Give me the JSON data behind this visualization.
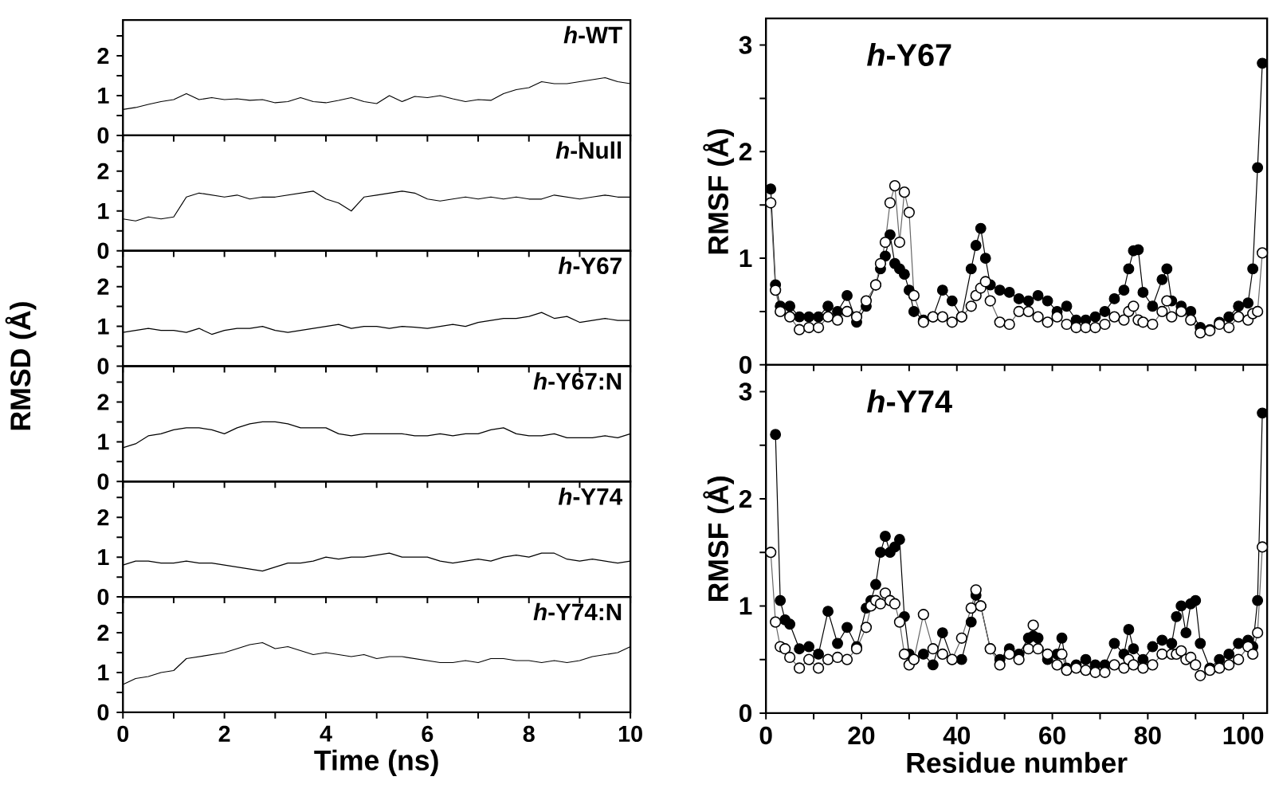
{
  "chart_data": [
    {
      "type": "line",
      "title": "*h*-WT",
      "color": "#000000",
      "tick_labels": "y",
      "xlim": [
        0,
        10
      ],
      "ylim": [
        0,
        2.9
      ],
      "xticks": [
        0,
        {
          "value": 1,
          "label": null
        },
        2,
        {
          "value": 3,
          "label": null
        },
        4,
        {
          "value": 5,
          "label": null
        },
        6,
        {
          "value": 7,
          "label": null
        },
        8,
        {
          "value": 9,
          "label": null
        },
        10
      ],
      "yticks": [
        0,
        {
          "value": 0.5,
          "label": null
        },
        1,
        {
          "value": 1.5,
          "label": null
        },
        2,
        {
          "value": 2.5,
          "label": null
        }
      ],
      "x": [
        0,
        0.25,
        0.5,
        0.75,
        1,
        1.25,
        1.5,
        1.75,
        2,
        2.25,
        2.5,
        2.75,
        3,
        3.25,
        3.5,
        3.75,
        4,
        4.25,
        4.5,
        4.75,
        5,
        5.25,
        5.5,
        5.75,
        6,
        6.25,
        6.5,
        6.75,
        7,
        7.25,
        7.5,
        7.75,
        8,
        8.25,
        8.5,
        8.75,
        9,
        9.25,
        9.5,
        9.75,
        10
      ],
      "values": [
        0.65,
        0.7,
        0.78,
        0.85,
        0.9,
        1.05,
        0.9,
        0.95,
        0.9,
        0.92,
        0.88,
        0.9,
        0.82,
        0.85,
        0.95,
        0.85,
        0.82,
        0.88,
        0.95,
        0.85,
        0.8,
        1.0,
        0.85,
        0.98,
        0.95,
        1.0,
        0.92,
        0.85,
        0.9,
        0.88,
        1.05,
        1.15,
        1.2,
        1.35,
        1.3,
        1.3,
        1.35,
        1.4,
        1.45,
        1.35,
        1.3
      ]
    },
    {
      "type": "line",
      "title": "*h*-Null",
      "color": "#000000",
      "tick_labels": "y",
      "xlim": [
        0,
        10
      ],
      "ylim": [
        0,
        2.9
      ],
      "xticks": [
        0,
        {
          "value": 1,
          "label": null
        },
        2,
        {
          "value": 3,
          "label": null
        },
        4,
        {
          "value": 5,
          "label": null
        },
        6,
        {
          "value": 7,
          "label": null
        },
        8,
        {
          "value": 9,
          "label": null
        },
        10
      ],
      "yticks": [
        0,
        {
          "value": 0.5,
          "label": null
        },
        1,
        {
          "value": 1.5,
          "label": null
        },
        2,
        {
          "value": 2.5,
          "label": null
        }
      ],
      "x": [
        0,
        0.25,
        0.5,
        0.75,
        1,
        1.25,
        1.5,
        1.75,
        2,
        2.25,
        2.5,
        2.75,
        3,
        3.25,
        3.5,
        3.75,
        4,
        4.25,
        4.5,
        4.75,
        5,
        5.25,
        5.5,
        5.75,
        6,
        6.25,
        6.5,
        6.75,
        7,
        7.25,
        7.5,
        7.75,
        8,
        8.25,
        8.5,
        8.75,
        9,
        9.25,
        9.5,
        9.75,
        10
      ],
      "values": [
        0.8,
        0.75,
        0.85,
        0.8,
        0.85,
        1.35,
        1.45,
        1.4,
        1.35,
        1.4,
        1.3,
        1.35,
        1.35,
        1.4,
        1.45,
        1.5,
        1.3,
        1.2,
        1.0,
        1.35,
        1.4,
        1.45,
        1.5,
        1.45,
        1.3,
        1.25,
        1.3,
        1.35,
        1.3,
        1.35,
        1.3,
        1.35,
        1.3,
        1.3,
        1.4,
        1.35,
        1.3,
        1.35,
        1.4,
        1.35,
        1.35
      ]
    },
    {
      "type": "line",
      "title": "*h*-Y67",
      "color": "#000000",
      "tick_labels": "y",
      "xlim": [
        0,
        10
      ],
      "ylim": [
        0,
        2.9
      ],
      "xticks": [
        0,
        {
          "value": 1,
          "label": null
        },
        2,
        {
          "value": 3,
          "label": null
        },
        4,
        {
          "value": 5,
          "label": null
        },
        6,
        {
          "value": 7,
          "label": null
        },
        8,
        {
          "value": 9,
          "label": null
        },
        10
      ],
      "yticks": [
        0,
        {
          "value": 0.5,
          "label": null
        },
        1,
        {
          "value": 1.5,
          "label": null
        },
        2,
        {
          "value": 2.5,
          "label": null
        }
      ],
      "x": [
        0,
        0.25,
        0.5,
        0.75,
        1,
        1.25,
        1.5,
        1.75,
        2,
        2.25,
        2.5,
        2.75,
        3,
        3.25,
        3.5,
        3.75,
        4,
        4.25,
        4.5,
        4.75,
        5,
        5.25,
        5.5,
        5.75,
        6,
        6.25,
        6.5,
        6.75,
        7,
        7.25,
        7.5,
        7.75,
        8,
        8.25,
        8.5,
        8.75,
        9,
        9.25,
        9.5,
        9.75,
        10
      ],
      "values": [
        0.85,
        0.9,
        0.95,
        0.9,
        0.9,
        0.85,
        0.95,
        0.8,
        0.9,
        0.95,
        0.95,
        1.0,
        0.9,
        0.85,
        0.9,
        0.95,
        1.0,
        1.05,
        0.95,
        1.0,
        1.0,
        0.95,
        1.0,
        0.98,
        0.95,
        1.0,
        1.05,
        1.0,
        1.1,
        1.15,
        1.2,
        1.2,
        1.25,
        1.35,
        1.2,
        1.25,
        1.1,
        1.15,
        1.2,
        1.15,
        1.15
      ]
    },
    {
      "type": "line",
      "title": "*h*-Y67:N",
      "ylabel": "RMSD (Å)",
      "color": "#000000",
      "tick_labels": "y",
      "xlim": [
        0,
        10
      ],
      "ylim": [
        0,
        2.9
      ],
      "xticks": [
        0,
        {
          "value": 1,
          "label": null
        },
        2,
        {
          "value": 3,
          "label": null
        },
        4,
        {
          "value": 5,
          "label": null
        },
        6,
        {
          "value": 7,
          "label": null
        },
        8,
        {
          "value": 9,
          "label": null
        },
        10
      ],
      "yticks": [
        0,
        {
          "value": 0.5,
          "label": null
        },
        1,
        {
          "value": 1.5,
          "label": null
        },
        2,
        {
          "value": 2.5,
          "label": null
        }
      ],
      "x": [
        0,
        0.25,
        0.5,
        0.75,
        1,
        1.25,
        1.5,
        1.75,
        2,
        2.25,
        2.5,
        2.75,
        3,
        3.25,
        3.5,
        3.75,
        4,
        4.25,
        4.5,
        4.75,
        5,
        5.25,
        5.5,
        5.75,
        6,
        6.25,
        6.5,
        6.75,
        7,
        7.25,
        7.5,
        7.75,
        8,
        8.25,
        8.5,
        8.75,
        9,
        9.25,
        9.5,
        9.75,
        10
      ],
      "values": [
        0.85,
        0.95,
        1.15,
        1.2,
        1.3,
        1.35,
        1.35,
        1.3,
        1.2,
        1.35,
        1.45,
        1.5,
        1.5,
        1.45,
        1.35,
        1.35,
        1.35,
        1.2,
        1.15,
        1.2,
        1.2,
        1.2,
        1.2,
        1.15,
        1.15,
        1.2,
        1.15,
        1.2,
        1.2,
        1.3,
        1.35,
        1.2,
        1.15,
        1.15,
        1.2,
        1.1,
        1.1,
        1.1,
        1.15,
        1.1,
        1.2
      ]
    },
    {
      "type": "line",
      "title": "*h*-Y74",
      "color": "#000000",
      "tick_labels": "y",
      "xlim": [
        0,
        10
      ],
      "ylim": [
        0,
        2.9
      ],
      "xticks": [
        0,
        {
          "value": 1,
          "label": null
        },
        2,
        {
          "value": 3,
          "label": null
        },
        4,
        {
          "value": 5,
          "label": null
        },
        6,
        {
          "value": 7,
          "label": null
        },
        8,
        {
          "value": 9,
          "label": null
        },
        10
      ],
      "yticks": [
        0,
        {
          "value": 0.5,
          "label": null
        },
        1,
        {
          "value": 1.5,
          "label": null
        },
        2,
        {
          "value": 2.5,
          "label": null
        }
      ],
      "x": [
        0,
        0.25,
        0.5,
        0.75,
        1,
        1.25,
        1.5,
        1.75,
        2,
        2.25,
        2.5,
        2.75,
        3,
        3.25,
        3.5,
        3.75,
        4,
        4.25,
        4.5,
        4.75,
        5,
        5.25,
        5.5,
        5.75,
        6,
        6.25,
        6.5,
        6.75,
        7,
        7.25,
        7.5,
        7.75,
        8,
        8.25,
        8.5,
        8.75,
        9,
        9.25,
        9.5,
        9.75,
        10
      ],
      "values": [
        0.8,
        0.9,
        0.9,
        0.85,
        0.85,
        0.9,
        0.85,
        0.85,
        0.8,
        0.75,
        0.7,
        0.65,
        0.75,
        0.85,
        0.85,
        0.9,
        1.0,
        0.95,
        1.0,
        1.0,
        1.05,
        1.1,
        1.0,
        1.0,
        1.0,
        0.9,
        0.85,
        0.9,
        0.95,
        0.9,
        1.0,
        1.05,
        1.0,
        1.1,
        1.1,
        0.95,
        0.9,
        0.95,
        0.9,
        0.85,
        0.9
      ]
    },
    {
      "type": "line",
      "title": "*h*-Y74:N",
      "xlabel": "Time (ns)",
      "color": "#000000",
      "xlim": [
        0,
        10
      ],
      "ylim": [
        0,
        2.9
      ],
      "xticks": [
        0,
        {
          "value": 1,
          "label": null
        },
        2,
        {
          "value": 3,
          "label": null
        },
        4,
        {
          "value": 5,
          "label": null
        },
        6,
        {
          "value": 7,
          "label": null
        },
        8,
        {
          "value": 9,
          "label": null
        },
        10
      ],
      "yticks": [
        0,
        {
          "value": 0.5,
          "label": null
        },
        1,
        {
          "value": 1.5,
          "label": null
        },
        2,
        {
          "value": 2.5,
          "label": null
        }
      ],
      "x": [
        0,
        0.25,
        0.5,
        0.75,
        1,
        1.25,
        1.5,
        1.75,
        2,
        2.25,
        2.5,
        2.75,
        3,
        3.25,
        3.5,
        3.75,
        4,
        4.25,
        4.5,
        4.75,
        5,
        5.25,
        5.5,
        5.75,
        6,
        6.25,
        6.5,
        6.75,
        7,
        7.25,
        7.5,
        7.75,
        8,
        8.25,
        8.5,
        8.75,
        9,
        9.25,
        9.5,
        9.75,
        10
      ],
      "values": [
        0.7,
        0.85,
        0.9,
        1.0,
        1.05,
        1.35,
        1.4,
        1.45,
        1.5,
        1.6,
        1.7,
        1.75,
        1.6,
        1.65,
        1.55,
        1.45,
        1.5,
        1.45,
        1.4,
        1.45,
        1.35,
        1.4,
        1.4,
        1.35,
        1.3,
        1.25,
        1.25,
        1.3,
        1.25,
        1.35,
        1.35,
        1.3,
        1.3,
        1.25,
        1.3,
        1.25,
        1.3,
        1.4,
        1.45,
        1.5,
        1.65
      ]
    },
    {
      "type": "line",
      "title": "*h*-Y67",
      "ylabel": "RMSF (Å)",
      "marker": "circle",
      "tick_labels": "y",
      "xlim": [
        0,
        105
      ],
      "ylim": [
        0,
        3.25
      ],
      "xticks": [
        0,
        {
          "value": 10,
          "label": null
        },
        20,
        {
          "value": 30,
          "label": null
        },
        40,
        {
          "value": 50,
          "label": null
        },
        60,
        {
          "value": 70,
          "label": null
        },
        80,
        {
          "value": 90,
          "label": null
        },
        100
      ],
      "yticks": [
        0,
        {
          "value": 0.5,
          "label": null
        },
        1,
        {
          "value": 1.5,
          "label": null
        },
        2,
        {
          "value": 2.5,
          "label": null
        },
        3
      ],
      "x": [
        1,
        2,
        3,
        5,
        7,
        9,
        11,
        13,
        15,
        17,
        19,
        21,
        23,
        24,
        25,
        26,
        27,
        28,
        29,
        30,
        31,
        33,
        35,
        37,
        39,
        41,
        43,
        44,
        45,
        46,
        47,
        49,
        51,
        53,
        55,
        57,
        59,
        61,
        63,
        65,
        67,
        69,
        71,
        73,
        75,
        76,
        77,
        78,
        79,
        81,
        83,
        84,
        85,
        87,
        89,
        91,
        93,
        95,
        97,
        99,
        101,
        102,
        103,
        104
      ],
      "series": [
        {
          "color": "#000000",
          "values": [
            1.65,
            0.75,
            0.55,
            0.55,
            0.45,
            0.45,
            0.45,
            0.55,
            0.5,
            0.65,
            0.4,
            0.55,
            0.75,
            0.9,
            1.02,
            1.22,
            0.95,
            0.9,
            0.85,
            0.7,
            0.5,
            0.42,
            0.45,
            0.7,
            0.6,
            0.45,
            0.9,
            1.12,
            1.28,
            1.0,
            0.75,
            0.7,
            0.68,
            0.62,
            0.6,
            0.65,
            0.6,
            0.5,
            0.55,
            0.42,
            0.42,
            0.45,
            0.5,
            0.62,
            0.7,
            0.9,
            1.07,
            1.08,
            0.68,
            0.55,
            0.8,
            0.9,
            0.6,
            0.55,
            0.5,
            0.35,
            0.33,
            0.4,
            0.45,
            0.55,
            0.58,
            0.9,
            1.85,
            2.83
          ]
        },
        {
          "color": "#ffffff",
          "values": [
            1.52,
            0.7,
            0.5,
            0.45,
            0.33,
            0.35,
            0.35,
            0.45,
            0.42,
            0.5,
            0.45,
            0.6,
            0.75,
            0.95,
            1.15,
            1.52,
            1.68,
            1.15,
            1.62,
            1.43,
            0.65,
            0.4,
            0.45,
            0.45,
            0.4,
            0.45,
            0.55,
            0.65,
            0.72,
            0.78,
            0.6,
            0.4,
            0.38,
            0.5,
            0.5,
            0.45,
            0.4,
            0.45,
            0.38,
            0.35,
            0.35,
            0.35,
            0.38,
            0.45,
            0.42,
            0.5,
            0.55,
            0.42,
            0.4,
            0.38,
            0.5,
            0.6,
            0.45,
            0.5,
            0.42,
            0.3,
            0.32,
            0.38,
            0.35,
            0.45,
            0.42,
            0.48,
            0.5,
            1.05
          ]
        }
      ]
    },
    {
      "type": "line",
      "title": "*h*-Y74",
      "ylabel": "RMSF (Å)",
      "xlabel": "Residue number",
      "marker": "circle",
      "xlim": [
        0,
        105
      ],
      "ylim": [
        0,
        3.25
      ],
      "xticks": [
        0,
        {
          "value": 10,
          "label": null
        },
        20,
        {
          "value": 30,
          "label": null
        },
        40,
        {
          "value": 50,
          "label": null
        },
        60,
        {
          "value": 70,
          "label": null
        },
        80,
        {
          "value": 90,
          "label": null
        },
        100
      ],
      "yticks": [
        0,
        {
          "value": 0.5,
          "label": null
        },
        1,
        {
          "value": 1.5,
          "label": null
        },
        2,
        {
          "value": 2.5,
          "label": null
        },
        3
      ],
      "x": [
        1,
        2,
        3,
        4,
        5,
        7,
        9,
        11,
        13,
        15,
        17,
        19,
        21,
        22,
        23,
        24,
        25,
        26,
        27,
        28,
        29,
        30,
        31,
        33,
        35,
        37,
        39,
        41,
        43,
        44,
        45,
        47,
        49,
        51,
        53,
        55,
        56,
        57,
        59,
        61,
        62,
        63,
        65,
        67,
        69,
        71,
        73,
        75,
        76,
        77,
        79,
        81,
        83,
        85,
        86,
        87,
        88,
        89,
        90,
        91,
        93,
        95,
        97,
        99,
        101,
        102,
        103,
        104
      ],
      "series": [
        {
          "color": "#000000",
          "values": [
            null,
            2.6,
            1.05,
            0.87,
            0.83,
            0.6,
            0.62,
            0.55,
            0.95,
            0.65,
            0.8,
            0.62,
            0.98,
            1.05,
            1.2,
            1.5,
            1.65,
            1.5,
            1.55,
            1.62,
            0.9,
            0.55,
            0.5,
            0.55,
            0.45,
            0.75,
            0.5,
            0.5,
            0.85,
            1.1,
            1.0,
            0.6,
            0.5,
            0.6,
            0.55,
            0.7,
            0.72,
            0.7,
            0.5,
            0.55,
            0.7,
            0.42,
            0.45,
            0.5,
            0.45,
            0.45,
            0.65,
            0.55,
            0.78,
            0.6,
            0.5,
            0.62,
            0.68,
            0.65,
            0.9,
            1.0,
            0.75,
            1.02,
            1.05,
            0.65,
            0.42,
            0.5,
            0.55,
            0.65,
            0.68,
            0.62,
            1.05,
            2.8
          ]
        },
        {
          "color": "#ffffff",
          "values": [
            1.5,
            0.85,
            0.62,
            0.6,
            0.52,
            0.42,
            0.5,
            0.42,
            0.5,
            0.52,
            0.5,
            0.6,
            0.8,
            1.0,
            1.05,
            1.02,
            1.12,
            1.05,
            1.02,
            0.85,
            0.55,
            0.45,
            0.5,
            0.92,
            0.6,
            0.55,
            0.5,
            0.7,
            0.98,
            1.15,
            1.0,
            0.6,
            0.45,
            0.55,
            0.5,
            0.6,
            0.82,
            0.6,
            0.55,
            0.45,
            0.55,
            0.4,
            0.42,
            0.4,
            0.38,
            0.38,
            0.45,
            0.42,
            0.5,
            0.45,
            0.42,
            0.45,
            0.55,
            0.55,
            0.55,
            0.58,
            0.5,
            0.52,
            0.45,
            0.35,
            0.4,
            0.42,
            0.45,
            0.5,
            0.62,
            0.55,
            0.75,
            1.55
          ]
        }
      ]
    }
  ]
}
